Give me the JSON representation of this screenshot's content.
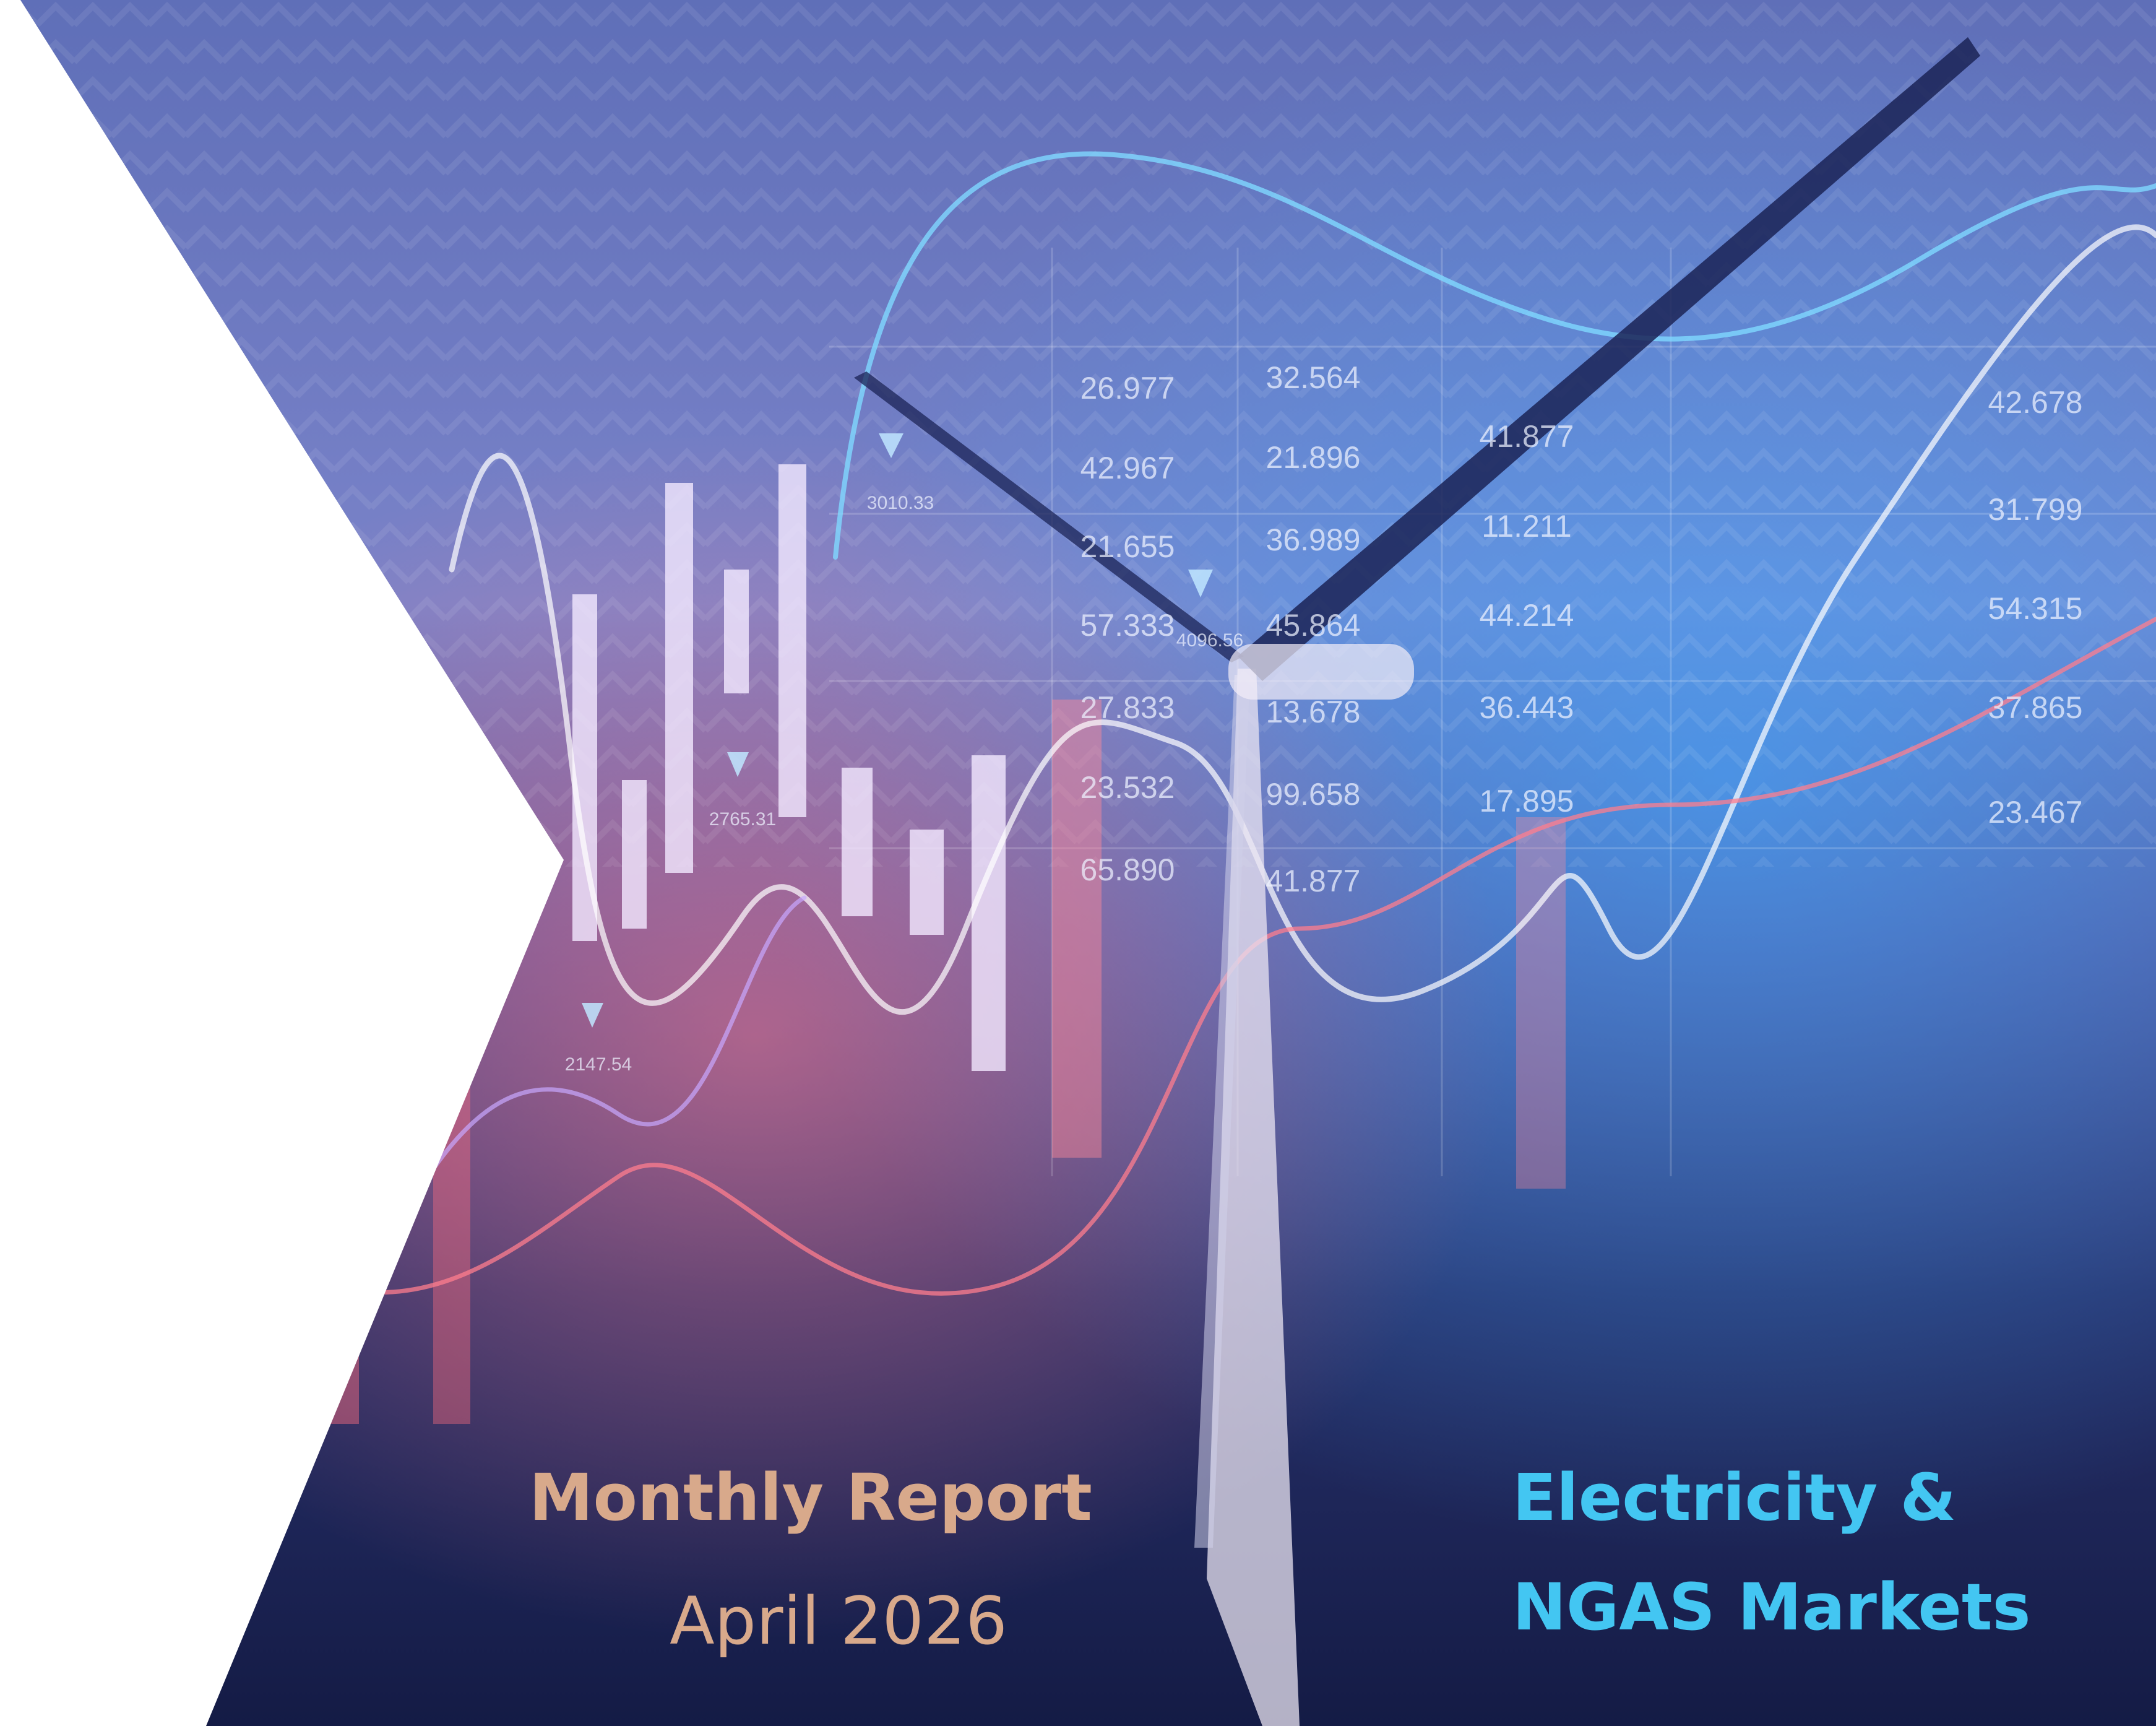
{
  "cover": {
    "report_title": "Monthly Report",
    "report_date": "April 2026",
    "subject_line_1": "Electricity &",
    "subject_line_2": "NGAS Markets"
  },
  "background_figures": [
    "26.977",
    "42.967",
    "21.655",
    "57.333",
    "27.833",
    "23.532",
    "65.890",
    "32.564",
    "21.896",
    "36.989",
    "45.864",
    "13.678",
    "99.658",
    "41.877",
    "41.877",
    "11.211",
    "44.214",
    "36.443",
    "17.895",
    "42.678",
    "31.799",
    "54.315",
    "37.865",
    "23.467",
    "3010.33",
    "2765.31",
    "2147.54",
    "4096.56"
  ]
}
